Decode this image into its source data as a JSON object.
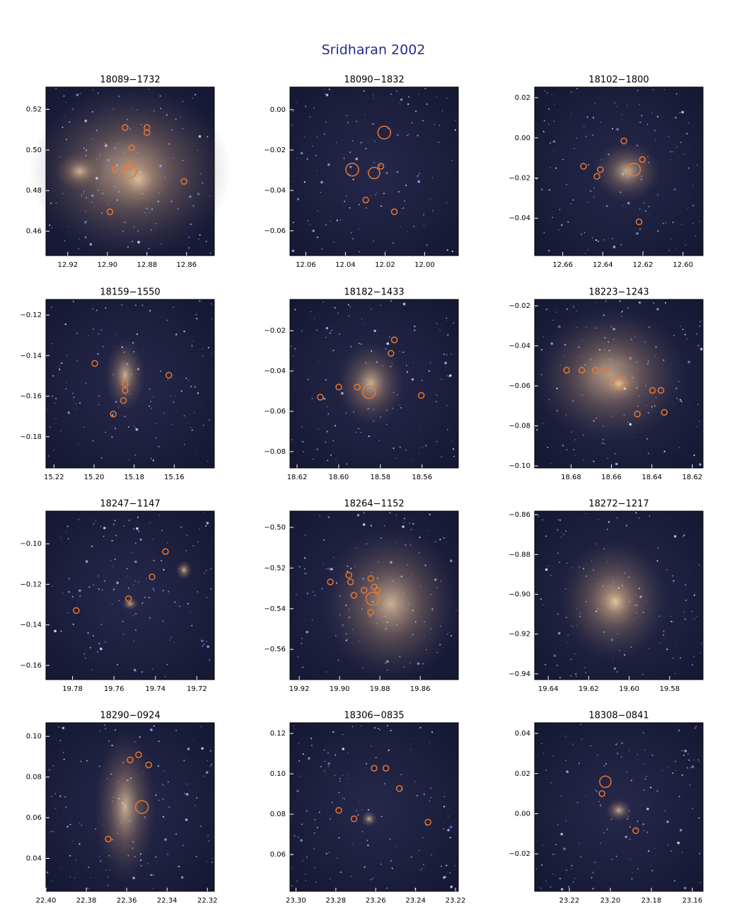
{
  "title": "Sridharan 2002",
  "chart_data": [
    {
      "type": "image",
      "title": "18089−1732",
      "xlim": [
        12.931,
        12.846
      ],
      "ylim": [
        0.448,
        0.531
      ],
      "xticks": [
        {
          "value": 12.92,
          "label": "12.92"
        },
        {
          "value": 12.9,
          "label": "12.90"
        },
        {
          "value": 12.88,
          "label": "12.88"
        },
        {
          "value": 12.86,
          "label": "12.86"
        }
      ],
      "yticks": [
        {
          "value": 0.52,
          "label": "0.52"
        },
        {
          "value": 0.5,
          "label": "0.50"
        },
        {
          "value": 0.48,
          "label": "0.48"
        },
        {
          "value": 0.46,
          "label": "0.46"
        }
      ]
    },
    {
      "type": "image",
      "title": "18090−1832",
      "xlim": [
        12.068,
        11.983
      ],
      "ylim": [
        -0.0723,
        0.0112
      ],
      "xticks": [
        {
          "value": 12.06,
          "label": "12.06"
        },
        {
          "value": 12.04,
          "label": "12.04"
        },
        {
          "value": 12.02,
          "label": "12.02"
        },
        {
          "value": 12.0,
          "label": "12.00"
        }
      ],
      "yticks": [
        {
          "value": 0.0,
          "label": "0.00"
        },
        {
          "value": -0.02,
          "label": "−0.02"
        },
        {
          "value": -0.04,
          "label": "−0.04"
        },
        {
          "value": -0.06,
          "label": "−0.06"
        }
      ]
    },
    {
      "type": "image",
      "title": "18102−1800",
      "xlim": [
        12.674,
        12.59
      ],
      "ylim": [
        -0.0586,
        0.0253
      ],
      "xticks": [
        {
          "value": 12.66,
          "label": "12.66"
        },
        {
          "value": 12.64,
          "label": "12.64"
        },
        {
          "value": 12.62,
          "label": "12.62"
        },
        {
          "value": 12.6,
          "label": "12.60"
        }
      ],
      "yticks": [
        {
          "value": 0.02,
          "label": "0.02"
        },
        {
          "value": 0.0,
          "label": "0.00"
        },
        {
          "value": -0.02,
          "label": "−0.02"
        },
        {
          "value": -0.04,
          "label": "−0.04"
        }
      ]
    },
    {
      "type": "image",
      "title": "18159−1550",
      "xlim": [
        15.224,
        15.14
      ],
      "ylim": [
        -0.1954,
        -0.1123
      ],
      "xticks": [
        {
          "value": 15.22,
          "label": "15.22"
        },
        {
          "value": 15.2,
          "label": "15.20"
        },
        {
          "value": 15.18,
          "label": "15.18"
        },
        {
          "value": 15.16,
          "label": "15.16"
        }
      ],
      "yticks": [
        {
          "value": -0.12,
          "label": "−0.12"
        },
        {
          "value": -0.14,
          "label": "−0.14"
        },
        {
          "value": -0.16,
          "label": "−0.16"
        },
        {
          "value": -0.18,
          "label": "−0.18"
        }
      ]
    },
    {
      "type": "image",
      "title": "18182−1433",
      "xlim": [
        18.6234,
        18.5426
      ],
      "ylim": [
        -0.0881,
        -0.0045
      ],
      "xticks": [
        {
          "value": 18.62,
          "label": "18.62"
        },
        {
          "value": 18.6,
          "label": "18.60"
        },
        {
          "value": 18.58,
          "label": "18.58"
        },
        {
          "value": 18.56,
          "label": "18.56"
        }
      ],
      "yticks": [
        {
          "value": -0.02,
          "label": "−0.02"
        },
        {
          "value": -0.04,
          "label": "−0.04"
        },
        {
          "value": -0.06,
          "label": "−0.06"
        },
        {
          "value": -0.08,
          "label": "−0.08"
        }
      ]
    },
    {
      "type": "image",
      "title": "18223−1243",
      "xlim": [
        18.698,
        18.6147
      ],
      "ylim": [
        -0.101,
        -0.0168
      ],
      "xticks": [
        {
          "value": 18.68,
          "label": "18.68"
        },
        {
          "value": 18.66,
          "label": "18.66"
        },
        {
          "value": 18.64,
          "label": "18.64"
        },
        {
          "value": 18.62,
          "label": "18.62"
        }
      ],
      "yticks": [
        {
          "value": -0.02,
          "label": "−0.02"
        },
        {
          "value": -0.04,
          "label": "−0.04"
        },
        {
          "value": -0.06,
          "label": "−0.06"
        },
        {
          "value": -0.08,
          "label": "−0.08"
        },
        {
          "value": -0.1,
          "label": "−0.10"
        }
      ]
    },
    {
      "type": "image",
      "title": "18247−1147",
      "xlim": [
        19.7928,
        19.7116
      ],
      "ylim": [
        -0.167,
        -0.0839
      ],
      "xticks": [
        {
          "value": 19.78,
          "label": "19.78"
        },
        {
          "value": 19.76,
          "label": "19.76"
        },
        {
          "value": 19.74,
          "label": "19.74"
        },
        {
          "value": 19.72,
          "label": "19.72"
        }
      ],
      "yticks": [
        {
          "value": -0.1,
          "label": "−0.10"
        },
        {
          "value": -0.12,
          "label": "−0.12"
        },
        {
          "value": -0.14,
          "label": "−0.14"
        },
        {
          "value": -0.16,
          "label": "−0.16"
        }
      ]
    },
    {
      "type": "image",
      "title": "18264−1152",
      "xlim": [
        19.9246,
        19.8411
      ],
      "ylim": [
        -0.5749,
        -0.492
      ],
      "xticks": [
        {
          "value": 19.92,
          "label": "19.92"
        },
        {
          "value": 19.9,
          "label": "19.90"
        },
        {
          "value": 19.88,
          "label": "19.88"
        },
        {
          "value": 19.86,
          "label": "19.86"
        }
      ],
      "yticks": [
        {
          "value": -0.5,
          "label": "−0.50"
        },
        {
          "value": -0.52,
          "label": "−0.52"
        },
        {
          "value": -0.54,
          "label": "−0.54"
        },
        {
          "value": -0.56,
          "label": "−0.56"
        }
      ]
    },
    {
      "type": "image",
      "title": "18272−1217",
      "xlim": [
        19.6467,
        19.5635
      ],
      "ylim": [
        -0.9429,
        -0.8582
      ],
      "xticks": [
        {
          "value": 19.64,
          "label": "19.64"
        },
        {
          "value": 19.62,
          "label": "19.62"
        },
        {
          "value": 19.6,
          "label": "19.60"
        },
        {
          "value": 19.58,
          "label": "19.58"
        }
      ],
      "yticks": [
        {
          "value": -0.86,
          "label": "−0.86"
        },
        {
          "value": -0.88,
          "label": "−0.88"
        },
        {
          "value": -0.9,
          "label": "−0.90"
        },
        {
          "value": -0.92,
          "label": "−0.92"
        },
        {
          "value": -0.94,
          "label": "−0.94"
        }
      ]
    },
    {
      "type": "image",
      "title": "18290−0924",
      "xlim": [
        22.4,
        22.3166
      ],
      "ylim": [
        0.0238,
        0.1067
      ],
      "xticks": [
        {
          "value": 22.4,
          "label": "22.40"
        },
        {
          "value": 22.38,
          "label": "22.38"
        },
        {
          "value": 22.36,
          "label": "22.36"
        },
        {
          "value": 22.34,
          "label": "22.34"
        },
        {
          "value": 22.32,
          "label": "22.32"
        }
      ],
      "yticks": [
        {
          "value": 0.1,
          "label": "0.10"
        },
        {
          "value": 0.08,
          "label": "0.08"
        },
        {
          "value": 0.06,
          "label": "0.06"
        },
        {
          "value": 0.04,
          "label": "0.04"
        }
      ]
    },
    {
      "type": "image",
      "title": "18306−0835",
      "xlim": [
        23.303,
        23.2186
      ],
      "ylim": [
        0.0418,
        0.1253
      ],
      "xticks": [
        {
          "value": 23.3,
          "label": "23.30"
        },
        {
          "value": 23.28,
          "label": "23.28"
        },
        {
          "value": 23.26,
          "label": "23.26"
        },
        {
          "value": 23.24,
          "label": "23.24"
        },
        {
          "value": 23.22,
          "label": "23.22"
        }
      ],
      "yticks": [
        {
          "value": 0.12,
          "label": "0.12"
        },
        {
          "value": 0.1,
          "label": "0.10"
        },
        {
          "value": 0.08,
          "label": "0.08"
        },
        {
          "value": 0.06,
          "label": "0.06"
        }
      ]
    },
    {
      "type": "image",
      "title": "18308−0841",
      "xlim": [
        23.2369,
        23.1548
      ],
      "ylim": [
        -0.0386,
        0.0453
      ],
      "xticks": [
        {
          "value": 23.22,
          "label": "23.22"
        },
        {
          "value": 23.2,
          "label": "23.20"
        },
        {
          "value": 23.18,
          "label": "23.18"
        },
        {
          "value": 23.16,
          "label": "23.16"
        }
      ],
      "yticks": [
        {
          "value": 0.04,
          "label": "0.04"
        },
        {
          "value": 0.02,
          "label": "0.02"
        },
        {
          "value": 0.0,
          "label": "0.00"
        },
        {
          "value": -0.02,
          "label": "−0.02"
        }
      ]
    }
  ]
}
